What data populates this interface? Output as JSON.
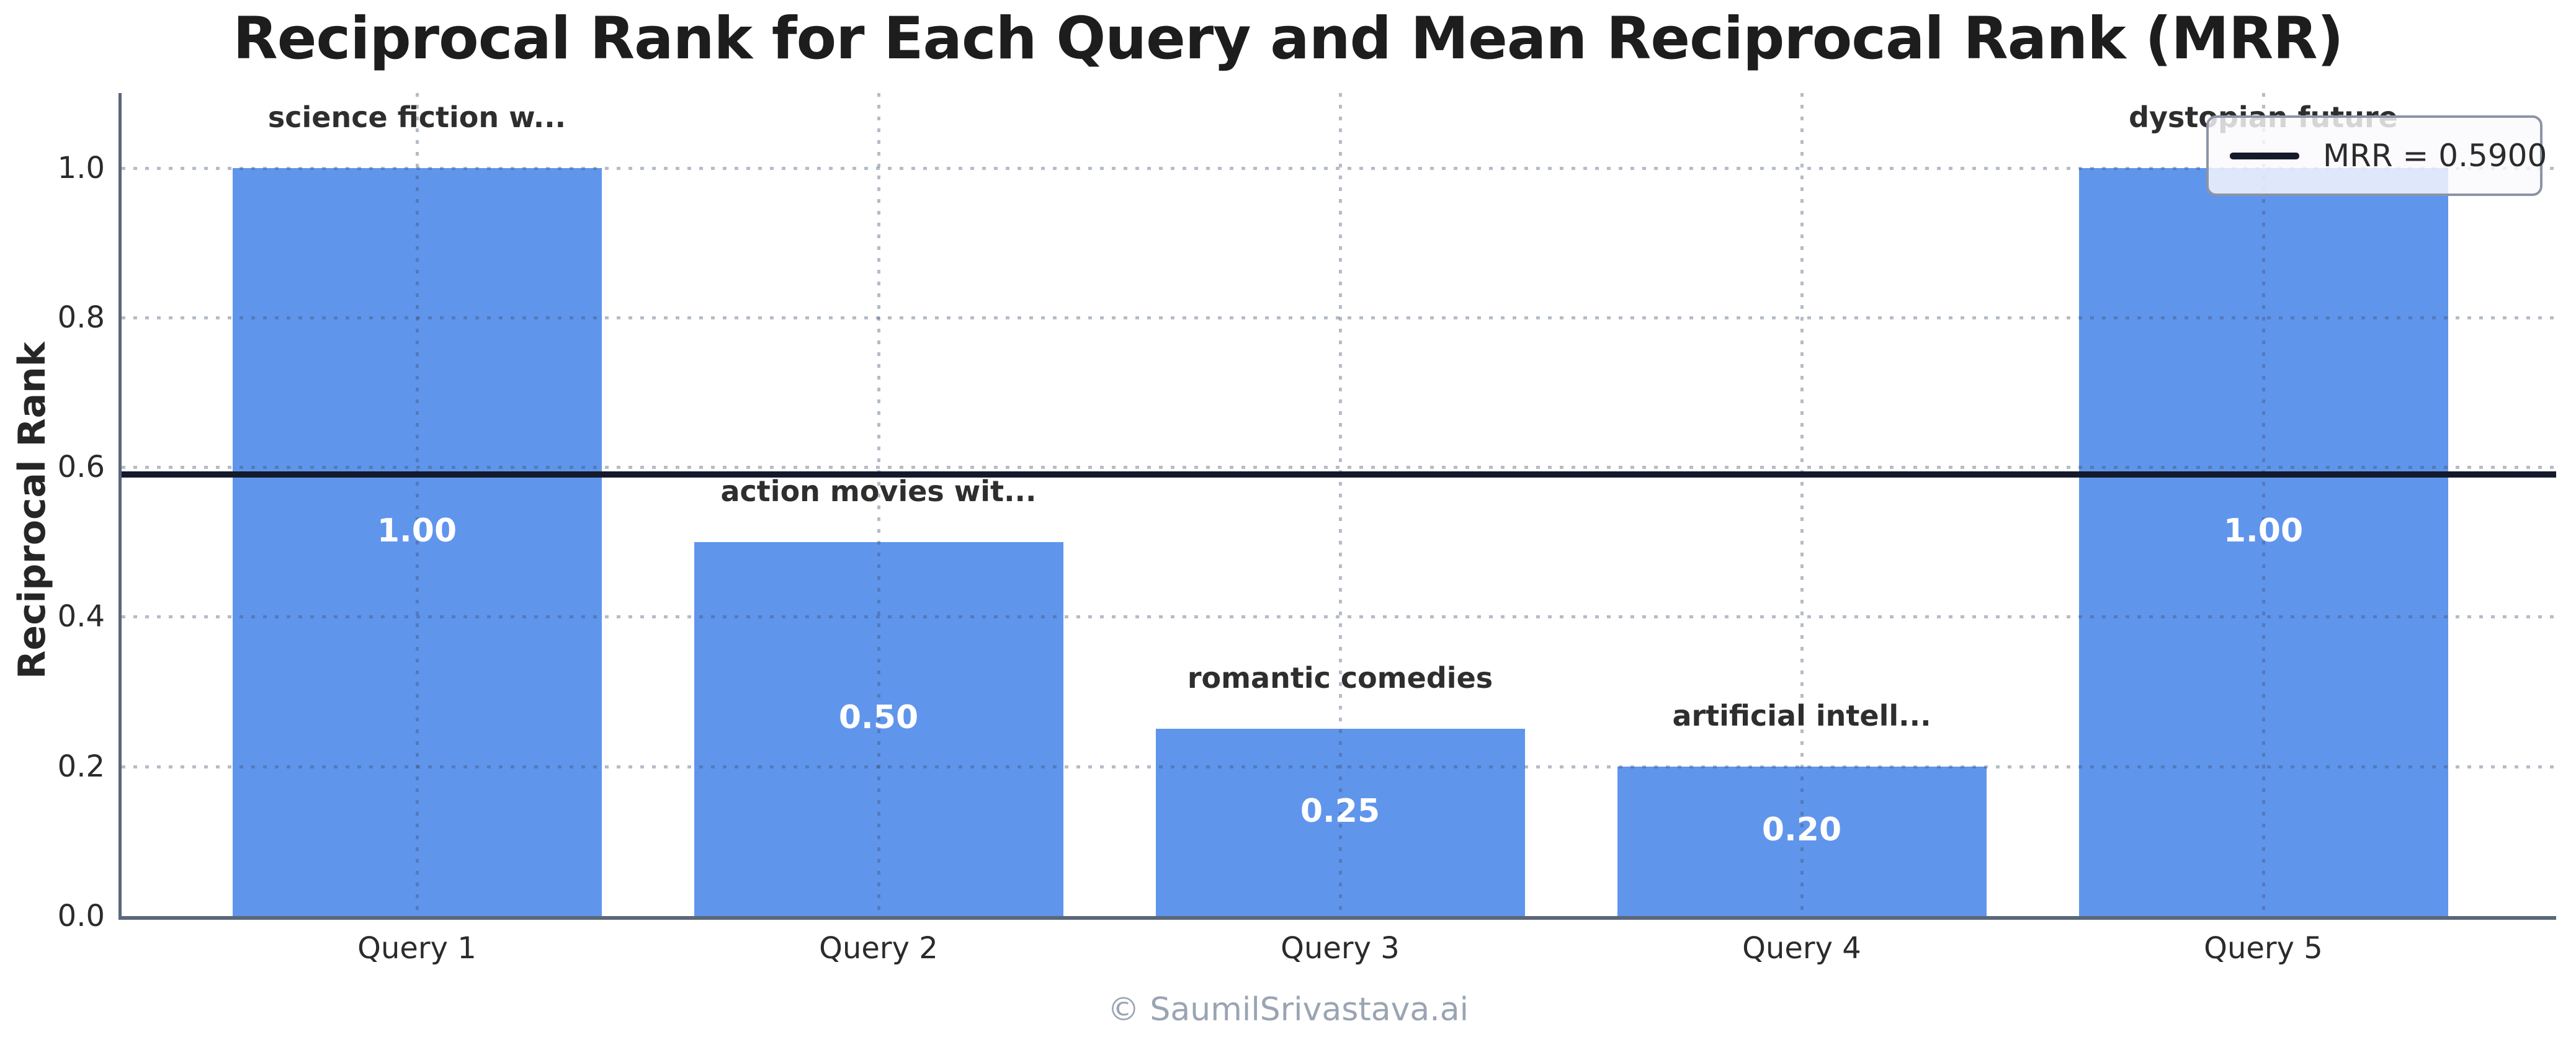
{
  "title": "Reciprocal Rank for Each Query and Mean Reciprocal Rank (MRR)",
  "y_axis": {
    "label": "Reciprocal Rank",
    "ticks": [
      "0.0",
      "0.2",
      "0.4",
      "0.6",
      "0.8",
      "1.0"
    ],
    "tick_values": [
      0.0,
      0.2,
      0.4,
      0.6,
      0.8,
      1.0
    ]
  },
  "chart_data": {
    "type": "bar",
    "title": "Reciprocal Rank for Each Query and Mean Reciprocal Rank (MRR)",
    "xlabel": "",
    "ylabel": "Reciprocal Rank",
    "ylim": [
      0,
      1.1
    ],
    "categories": [
      "Query 1",
      "Query 2",
      "Query 3",
      "Query 4",
      "Query 5"
    ],
    "values": [
      1.0,
      0.5,
      0.25,
      0.2,
      1.0
    ],
    "value_labels": [
      "1.00",
      "0.50",
      "0.25",
      "0.20",
      "1.00"
    ],
    "bar_annotations": [
      "science fiction w...",
      "action movies wit...",
      "romantic comedies",
      "artificial intell...",
      "dystopian future"
    ],
    "mrr_value": 0.59,
    "grid": "dotted, horizontal and vertical, drawn over bars",
    "legend_position": "upper right"
  },
  "legend": {
    "label": "MRR = 0.5900"
  },
  "footer": {
    "text": "© SaumilSrivastava.ai"
  },
  "colors": {
    "bar": "#6095ec",
    "mrr_line": "#141a2a",
    "grid_rgba": "rgba(60,80,110,0.38)",
    "spine": "#5b6779",
    "footer_text": "#9aa4b3",
    "tick_text": "#2b2b2b",
    "annotation_text": "#2e2e2e"
  }
}
